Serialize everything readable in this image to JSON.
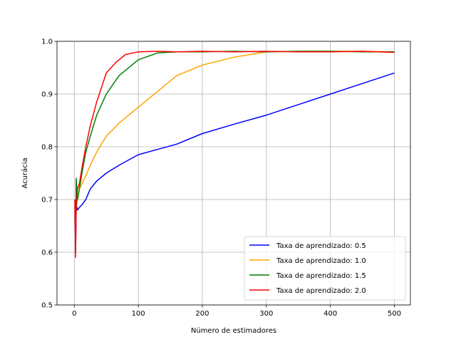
{
  "chart_data": {
    "type": "line",
    "xlabel": "Número de estimadores",
    "ylabel": "Acurácia",
    "xlim": [
      -27,
      525
    ],
    "ylim": [
      0.5,
      1.0
    ],
    "xticks": [
      0,
      100,
      200,
      300,
      400,
      500
    ],
    "yticks": [
      0.5,
      0.6,
      0.7,
      0.8,
      0.9,
      1.0
    ],
    "xtick_labels": [
      "0",
      "100",
      "200",
      "300",
      "400",
      "500"
    ],
    "ytick_labels": [
      "0.5",
      "0.6",
      "0.7",
      "0.8",
      "0.9",
      "1.0"
    ],
    "grid": true,
    "legend_position": "lower-right",
    "series": [
      {
        "name": "Taxa de aprendizado: 0.5",
        "color": "#0000ff",
        "x": [
          1,
          2,
          3,
          5,
          8,
          12,
          18,
          25,
          35,
          50,
          70,
          100,
          130,
          160,
          200,
          250,
          300,
          350,
          400,
          450,
          500
        ],
        "y": [
          0.7,
          0.6,
          0.69,
          0.68,
          0.685,
          0.69,
          0.7,
          0.72,
          0.735,
          0.75,
          0.765,
          0.785,
          0.795,
          0.805,
          0.825,
          0.843,
          0.86,
          0.88,
          0.9,
          0.92,
          0.94
        ]
      },
      {
        "name": "Taxa de aprendizado: 1.0",
        "color": "#ffa500",
        "x": [
          1,
          2,
          3,
          5,
          8,
          12,
          18,
          25,
          35,
          50,
          70,
          100,
          130,
          160,
          200,
          250,
          300,
          350,
          400,
          450,
          500
        ],
        "y": [
          0.7,
          0.63,
          0.69,
          0.7,
          0.72,
          0.73,
          0.745,
          0.765,
          0.79,
          0.82,
          0.845,
          0.875,
          0.905,
          0.935,
          0.955,
          0.97,
          0.98,
          0.981,
          0.981,
          0.981,
          0.98
        ]
      },
      {
        "name": "Taxa de aprendizado: 1.5",
        "color": "#008000",
        "x": [
          1,
          2,
          3,
          5,
          8,
          12,
          18,
          25,
          35,
          50,
          70,
          100,
          130,
          160,
          200,
          250,
          300,
          350,
          400,
          450,
          500
        ],
        "y": [
          0.7,
          0.62,
          0.74,
          0.7,
          0.72,
          0.75,
          0.79,
          0.82,
          0.86,
          0.9,
          0.935,
          0.965,
          0.978,
          0.98,
          0.98,
          0.981,
          0.98,
          0.981,
          0.981,
          0.98,
          0.98
        ]
      },
      {
        "name": "Taxa de aprendizado: 2.0",
        "color": "#ff0000",
        "x": [
          1,
          2,
          3,
          5,
          8,
          12,
          18,
          25,
          35,
          50,
          65,
          80,
          100,
          130,
          160,
          200,
          250,
          300,
          350,
          400,
          450,
          500
        ],
        "y": [
          0.7,
          0.59,
          0.68,
          0.72,
          0.73,
          0.76,
          0.8,
          0.84,
          0.885,
          0.94,
          0.96,
          0.975,
          0.98,
          0.981,
          0.98,
          0.981,
          0.98,
          0.981,
          0.98,
          0.98,
          0.981,
          0.979
        ]
      }
    ]
  }
}
